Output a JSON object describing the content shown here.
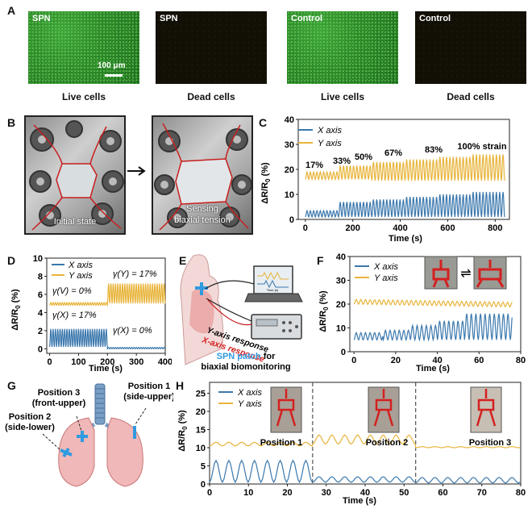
{
  "panels": {
    "A": "A",
    "B": "B",
    "C": "C",
    "D": "D",
    "E": "E",
    "F": "F",
    "G": "G",
    "H": "H"
  },
  "colors": {
    "x": "#3b78ad",
    "y": "#e8b43a",
    "red": "#d42020",
    "blue": "#2f9be0"
  },
  "panelA": {
    "tiles": [
      {
        "label": "SPN",
        "caption": "Live cells"
      },
      {
        "label": "SPN",
        "caption": "Dead cells"
      },
      {
        "label": "Control",
        "caption": "Live cells"
      },
      {
        "label": "Control",
        "caption": "Dead cells"
      }
    ],
    "scale_bar": "100 μm"
  },
  "panelB": {
    "left_caption": "Initial state",
    "right_caption_1": "Sensing",
    "right_caption_2": "biaxial tension"
  },
  "panelE": {
    "y_resp": "Y-axis response",
    "x_resp": "X-axis response",
    "patch_1": "SPN patch",
    "patch_2": " for",
    "patch_3": "biaxial biomonitoring",
    "screen_time": "Time (s)"
  },
  "panelG": {
    "pos3_1": "Position 3",
    "pos3_2": "(front-upper)",
    "pos1_1": "Position 1",
    "pos1_2": "(side-upper)",
    "pos2_1": "Position 2",
    "pos2_2": "(side-lower)"
  },
  "chart_data": [
    {
      "id": "C",
      "type": "line",
      "xlabel": "Time (s)",
      "ylabel": "ΔR/R0 (%)",
      "xlim": [
        -30,
        860
      ],
      "ylim": [
        0,
        40
      ],
      "xticks": [
        0,
        200,
        400,
        600,
        800
      ],
      "yticks": [
        0,
        10,
        20,
        30,
        40
      ],
      "legend": [
        "X axis",
        "Y axis"
      ],
      "annotations": [
        "17%",
        "33%",
        "50%",
        "67%",
        "83%",
        "100% strain"
      ],
      "series": [
        {
          "name": "X axis",
          "segments": [
            [
              0,
              140,
              1,
              3.5
            ],
            [
              140,
              280,
              1,
              7
            ],
            [
              280,
              420,
              1,
              8
            ],
            [
              420,
              560,
              1,
              9
            ],
            [
              560,
              700,
              1,
              10
            ],
            [
              700,
              840,
              1,
              11
            ]
          ],
          "period": 14
        },
        {
          "name": "Y axis",
          "segments": [
            [
              0,
              140,
              16,
              19
            ],
            [
              140,
              280,
              16,
              21.5
            ],
            [
              280,
              420,
              15.5,
              23
            ],
            [
              420,
              560,
              15.5,
              24
            ],
            [
              560,
              700,
              15.5,
              25
            ],
            [
              700,
              840,
              15.5,
              26
            ]
          ],
          "period": 14
        }
      ]
    },
    {
      "id": "D",
      "type": "line",
      "xlabel": "Time (s)",
      "ylabel": "ΔR/R0 (%)",
      "xlim": [
        -10,
        400
      ],
      "ylim": [
        -0.5,
        10
      ],
      "xticks": [
        0,
        100,
        200,
        300,
        400
      ],
      "yticks": [
        0,
        2,
        4,
        6,
        8,
        10
      ],
      "legend": [
        "X axis",
        "Y axis"
      ],
      "annotations": [
        "γ(Y) = 17%",
        "γ(V) = 0%",
        "γ(X) = 17%",
        "γ(X) = 0%"
      ],
      "series": [
        {
          "name": "X axis",
          "segments": [
            [
              0,
              200,
              0.2,
              2.2
            ],
            [
              200,
              400,
              0,
              0.15
            ]
          ],
          "period": 8
        },
        {
          "name": "Y axis",
          "segments": [
            [
              0,
              200,
              4.8,
              5.1
            ],
            [
              200,
              400,
              5,
              7.2
            ]
          ],
          "period": 8
        }
      ]
    },
    {
      "id": "F",
      "type": "line",
      "xlabel": "Time (s)",
      "ylabel": "ΔR/R0 (%)",
      "xlim": [
        -2,
        80
      ],
      "ylim": [
        0,
        40
      ],
      "xticks": [
        0,
        20,
        40,
        60,
        80
      ],
      "yticks": [
        0,
        10,
        20,
        30,
        40
      ],
      "legend": [
        "X axis",
        "Y axis"
      ],
      "series": [
        {
          "name": "X axis",
          "segments": [
            [
              0,
              14,
              5,
              8
            ],
            [
              14,
              27,
              5,
              9
            ],
            [
              27,
              40,
              5,
              11
            ],
            [
              40,
              53,
              5,
              13
            ],
            [
              53,
              76,
              5,
              16
            ]
          ],
          "period": 2.2
        },
        {
          "name": "Y axis",
          "segments": [
            [
              0,
              76,
              20,
              22
            ]
          ],
          "period": 2.2,
          "decay": true
        }
      ]
    },
    {
      "id": "H",
      "type": "line",
      "xlabel": "Time (s)",
      "ylabel": "ΔR/R0 (%)",
      "xlim": [
        0,
        80
      ],
      "ylim": [
        0,
        28
      ],
      "xticks": [
        0,
        10,
        20,
        30,
        40,
        50,
        60,
        70,
        80
      ],
      "yticks": [
        0,
        5,
        10,
        15,
        20,
        25
      ],
      "legend": [
        "X axis",
        "Y axis"
      ],
      "annotations": [
        "Position 1",
        "Position 2",
        "Position 3"
      ],
      "dividers": [
        26.5,
        53
      ],
      "series": [
        {
          "name": "X axis",
          "segments": [
            [
              0,
              26.5,
              0.5,
              6.5
            ],
            [
              26.5,
              53,
              0.5,
              2
            ],
            [
              53,
              80,
              0.3,
              1.8
            ]
          ],
          "period": 3.3
        },
        {
          "name": "Y axis",
          "segments": [
            [
              0,
              26.5,
              10.5,
              11.5
            ],
            [
              26.5,
              53,
              11,
              13.5
            ],
            [
              53,
              80,
              10,
              10.3
            ]
          ],
          "period": 3.3
        }
      ]
    }
  ]
}
